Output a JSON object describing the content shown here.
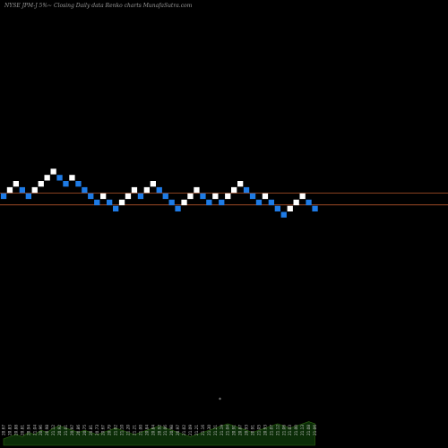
{
  "header": {
    "title": "NYSE JPM-J 5%~  Closing Daily data  Renko  charts MunafaSutra.com"
  },
  "colors": {
    "background": "#000000",
    "up_brick": "#ffffff",
    "down_brick": "#1e7be6",
    "level_line": "#b5552a",
    "volume_area": "#0b2d07",
    "volume_peak": "#2f6b12"
  },
  "chart_data": {
    "type": "renko",
    "title": "NYSE JPM-J 5%~  Closing Daily data  Renko  charts MunafaSutra.com",
    "brick_unit": "levels",
    "bricks": [
      {
        "dir": "down",
        "level": 0
      },
      {
        "dir": "up",
        "level": 1
      },
      {
        "dir": "up",
        "level": 2
      },
      {
        "dir": "down",
        "level": 1
      },
      {
        "dir": "down",
        "level": 0
      },
      {
        "dir": "up",
        "level": 1
      },
      {
        "dir": "up",
        "level": 2
      },
      {
        "dir": "up",
        "level": 3
      },
      {
        "dir": "up",
        "level": 4
      },
      {
        "dir": "down",
        "level": 3
      },
      {
        "dir": "down",
        "level": 2
      },
      {
        "dir": "up",
        "level": 3
      },
      {
        "dir": "down",
        "level": 2
      },
      {
        "dir": "down",
        "level": 1
      },
      {
        "dir": "down",
        "level": 0
      },
      {
        "dir": "down",
        "level": -1
      },
      {
        "dir": "up",
        "level": 0
      },
      {
        "dir": "down",
        "level": -1
      },
      {
        "dir": "down",
        "level": -2
      },
      {
        "dir": "up",
        "level": -1
      },
      {
        "dir": "up",
        "level": 0
      },
      {
        "dir": "up",
        "level": 1
      },
      {
        "dir": "down",
        "level": 0
      },
      {
        "dir": "up",
        "level": 1
      },
      {
        "dir": "up",
        "level": 2
      },
      {
        "dir": "down",
        "level": 1
      },
      {
        "dir": "down",
        "level": 0
      },
      {
        "dir": "down",
        "level": -1
      },
      {
        "dir": "down",
        "level": -2
      },
      {
        "dir": "up",
        "level": -1
      },
      {
        "dir": "up",
        "level": 0
      },
      {
        "dir": "up",
        "level": 1
      },
      {
        "dir": "down",
        "level": 0
      },
      {
        "dir": "down",
        "level": -1
      },
      {
        "dir": "up",
        "level": 0
      },
      {
        "dir": "down",
        "level": -1
      },
      {
        "dir": "up",
        "level": 0
      },
      {
        "dir": "up",
        "level": 1
      },
      {
        "dir": "up",
        "level": 2
      },
      {
        "dir": "down",
        "level": 1
      },
      {
        "dir": "down",
        "level": 0
      },
      {
        "dir": "down",
        "level": -1
      },
      {
        "dir": "up",
        "level": 0
      },
      {
        "dir": "down",
        "level": -1
      },
      {
        "dir": "down",
        "level": -2
      },
      {
        "dir": "down",
        "level": -3
      },
      {
        "dir": "up",
        "level": -2
      },
      {
        "dir": "up",
        "level": -1
      },
      {
        "dir": "up",
        "level": 0
      },
      {
        "dir": "down",
        "level": -1
      },
      {
        "dir": "down",
        "level": -2
      }
    ],
    "reference_levels": [
      0.5,
      -1.4
    ],
    "x_labels": [
      "20.67",
      "20.83",
      "20.88",
      "20.81",
      "20.94",
      "21.04",
      "20.96",
      "20.98",
      "21.12",
      "20.92",
      "21.01",
      "20.97",
      "20.86",
      "20.75",
      "20.81",
      "20.73",
      "20.67",
      "20.79",
      "21.02",
      "21.10",
      "21.20",
      "21.21",
      "21.00",
      "20.84",
      "20.84",
      "20.92",
      "21.06",
      "20.98",
      "20.97",
      "21.02",
      "21.09",
      "21.21",
      "21.16",
      "21.30",
      "21.21",
      "21.19",
      "21.04",
      "20.91",
      "20.87",
      "20.93",
      "20.91",
      "21.05",
      "20.93",
      "21.07",
      "21.12",
      "21.06",
      "21.03",
      "21.00",
      "21.13",
      "21.08",
      "21.06"
    ],
    "volume": [
      3,
      4,
      5,
      4,
      6,
      5,
      7,
      6,
      8,
      9,
      8,
      7,
      6,
      7,
      6,
      5,
      6,
      7,
      8,
      7,
      6,
      5,
      6,
      7,
      8,
      9,
      8,
      7,
      6,
      5,
      4,
      5,
      6,
      7,
      8,
      9,
      10,
      9,
      8,
      7,
      6,
      7,
      8,
      9,
      10,
      9,
      8,
      9,
      10,
      11,
      10
    ]
  },
  "volume_marker": "*"
}
